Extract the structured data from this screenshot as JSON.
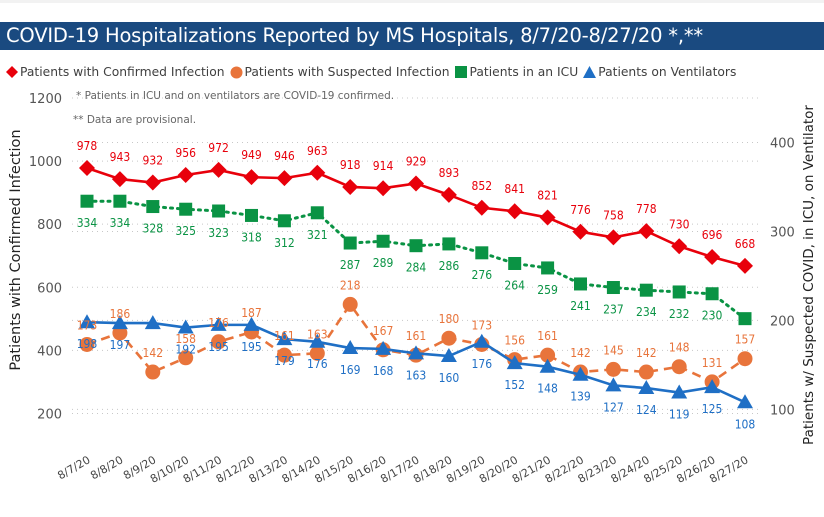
{
  "chart_data": {
    "type": "line",
    "title": "COVID-19 Hospitalizations Reported by MS Hospitals, 8/7/20-8/27/20 *,**",
    "notes": [
      "* Patients in ICU and on ventilators are COVID-19 confirmed.",
      "** Data are provisional."
    ],
    "categories": [
      "8/7/20",
      "8/8/20",
      "8/9/20",
      "8/10/20",
      "8/11/20",
      "8/12/20",
      "8/13/20",
      "8/14/20",
      "8/15/20",
      "8/16/20",
      "8/17/20",
      "8/18/20",
      "8/19/20",
      "8/20/20",
      "8/21/20",
      "8/22/20",
      "8/23/20",
      "8/24/20",
      "8/25/20",
      "8/26/20",
      "8/27/20"
    ],
    "ylabel": "Patients with Confirmed Infection",
    "y2label": "Patients w/ Suspected COVID, in ICU, on Ventilator",
    "ylim": [
      100,
      1200
    ],
    "y2lim": [
      60,
      450
    ],
    "yticks": [
      200,
      400,
      600,
      800,
      1000,
      1200
    ],
    "y2ticks": [
      100,
      200,
      300,
      400
    ],
    "grid": true,
    "legend_position": "top",
    "series": [
      {
        "name": "Patients with Confirmed Infection",
        "axis": "left",
        "marker": "diamond",
        "style": "solid",
        "color": "#e8000b",
        "values": [
          978,
          943,
          932,
          956,
          972,
          949,
          946,
          963,
          918,
          914,
          929,
          893,
          852,
          841,
          821,
          776,
          758,
          778,
          730,
          696,
          668
        ],
        "labels": [
          "978",
          "943",
          "932",
          "956",
          "972",
          "949",
          "946",
          "963",
          "918",
          "914",
          "929",
          "893",
          "852",
          "841",
          "821",
          "776",
          "758",
          "778",
          "730",
          "696",
          "668"
        ]
      },
      {
        "name": "Patients with Suspected Infection",
        "axis": "right",
        "marker": "circle",
        "style": "dashed",
        "color": "#e8743b",
        "values": [
          173,
          186,
          142,
          158,
          176,
          187,
          161,
          163,
          218,
          167,
          161,
          180,
          173,
          156,
          161,
          142,
          145,
          142,
          148,
          131,
          157
        ],
        "labels": [
          "173",
          "186",
          "142",
          "158",
          "176",
          "187",
          "161",
          "163",
          "218",
          "167",
          "161",
          "180",
          "173",
          "156",
          "161",
          "142",
          "145",
          "142",
          "148",
          "131",
          "157"
        ]
      },
      {
        "name": "Patients in an ICU",
        "axis": "right",
        "marker": "square",
        "style": "dotted",
        "color": "#0a9344",
        "values": [
          334,
          334,
          328,
          325,
          323,
          318,
          312,
          321,
          287,
          289,
          284,
          286,
          276,
          264,
          259,
          241,
          237,
          234,
          232,
          230,
          202
        ],
        "labels": [
          "334",
          "334",
          "328",
          "325",
          "323",
          "318",
          "312",
          "321",
          "287",
          "289",
          "284",
          "286",
          "276",
          "264",
          "259",
          "241",
          "237",
          "234",
          "232",
          "230",
          ""
        ]
      },
      {
        "name": "Patients on Ventilators",
        "axis": "right",
        "marker": "triangle",
        "style": "solid",
        "color": "#1f6fc5",
        "values": [
          198,
          197,
          197,
          192,
          195,
          195,
          179,
          176,
          169,
          168,
          163,
          160,
          176,
          152,
          148,
          139,
          127,
          124,
          119,
          125,
          108
        ],
        "labels": [
          "198",
          "197",
          "",
          "192",
          "195",
          "195",
          "179",
          "176",
          "169",
          "168",
          "163",
          "160",
          "176",
          "152",
          "148",
          "139",
          "127",
          "124",
          "119",
          "125",
          "108"
        ]
      }
    ]
  }
}
